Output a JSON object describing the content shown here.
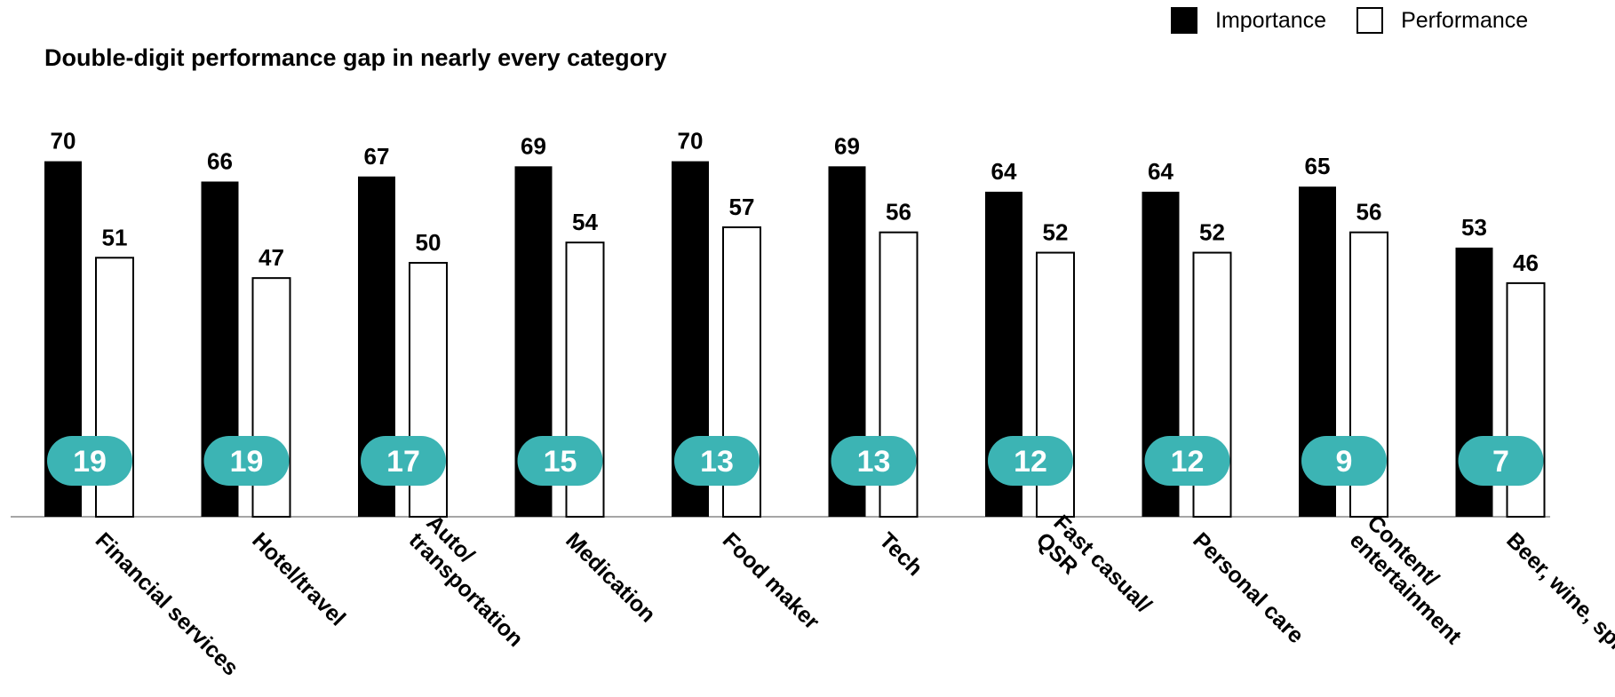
{
  "chart_data": {
    "type": "bar",
    "title": "Double-digit performance gap in nearly every category",
    "xlabel": "",
    "ylabel": "",
    "ylim": [
      0,
      70
    ],
    "grid": false,
    "legend_position": "top-right",
    "categories": [
      "Financial services",
      "Hotel/travel",
      "Auto/ transportation",
      "Medication",
      "Food maker",
      "Tech",
      "Fast casual/ QSR",
      "Personal care",
      "Content/ entertainment",
      "Beer, wine, spirits"
    ],
    "series": [
      {
        "name": "Importance",
        "color": "#000000",
        "values": [
          70,
          66,
          67,
          69,
          70,
          69,
          64,
          64,
          65,
          53
        ]
      },
      {
        "name": "Performance",
        "color": "#ffffff",
        "values": [
          51,
          47,
          50,
          54,
          57,
          56,
          52,
          52,
          56,
          46
        ]
      }
    ],
    "gaps": [
      19,
      19,
      17,
      15,
      13,
      13,
      12,
      12,
      9,
      7
    ],
    "gap_badge_color": "#3cb4b4"
  }
}
